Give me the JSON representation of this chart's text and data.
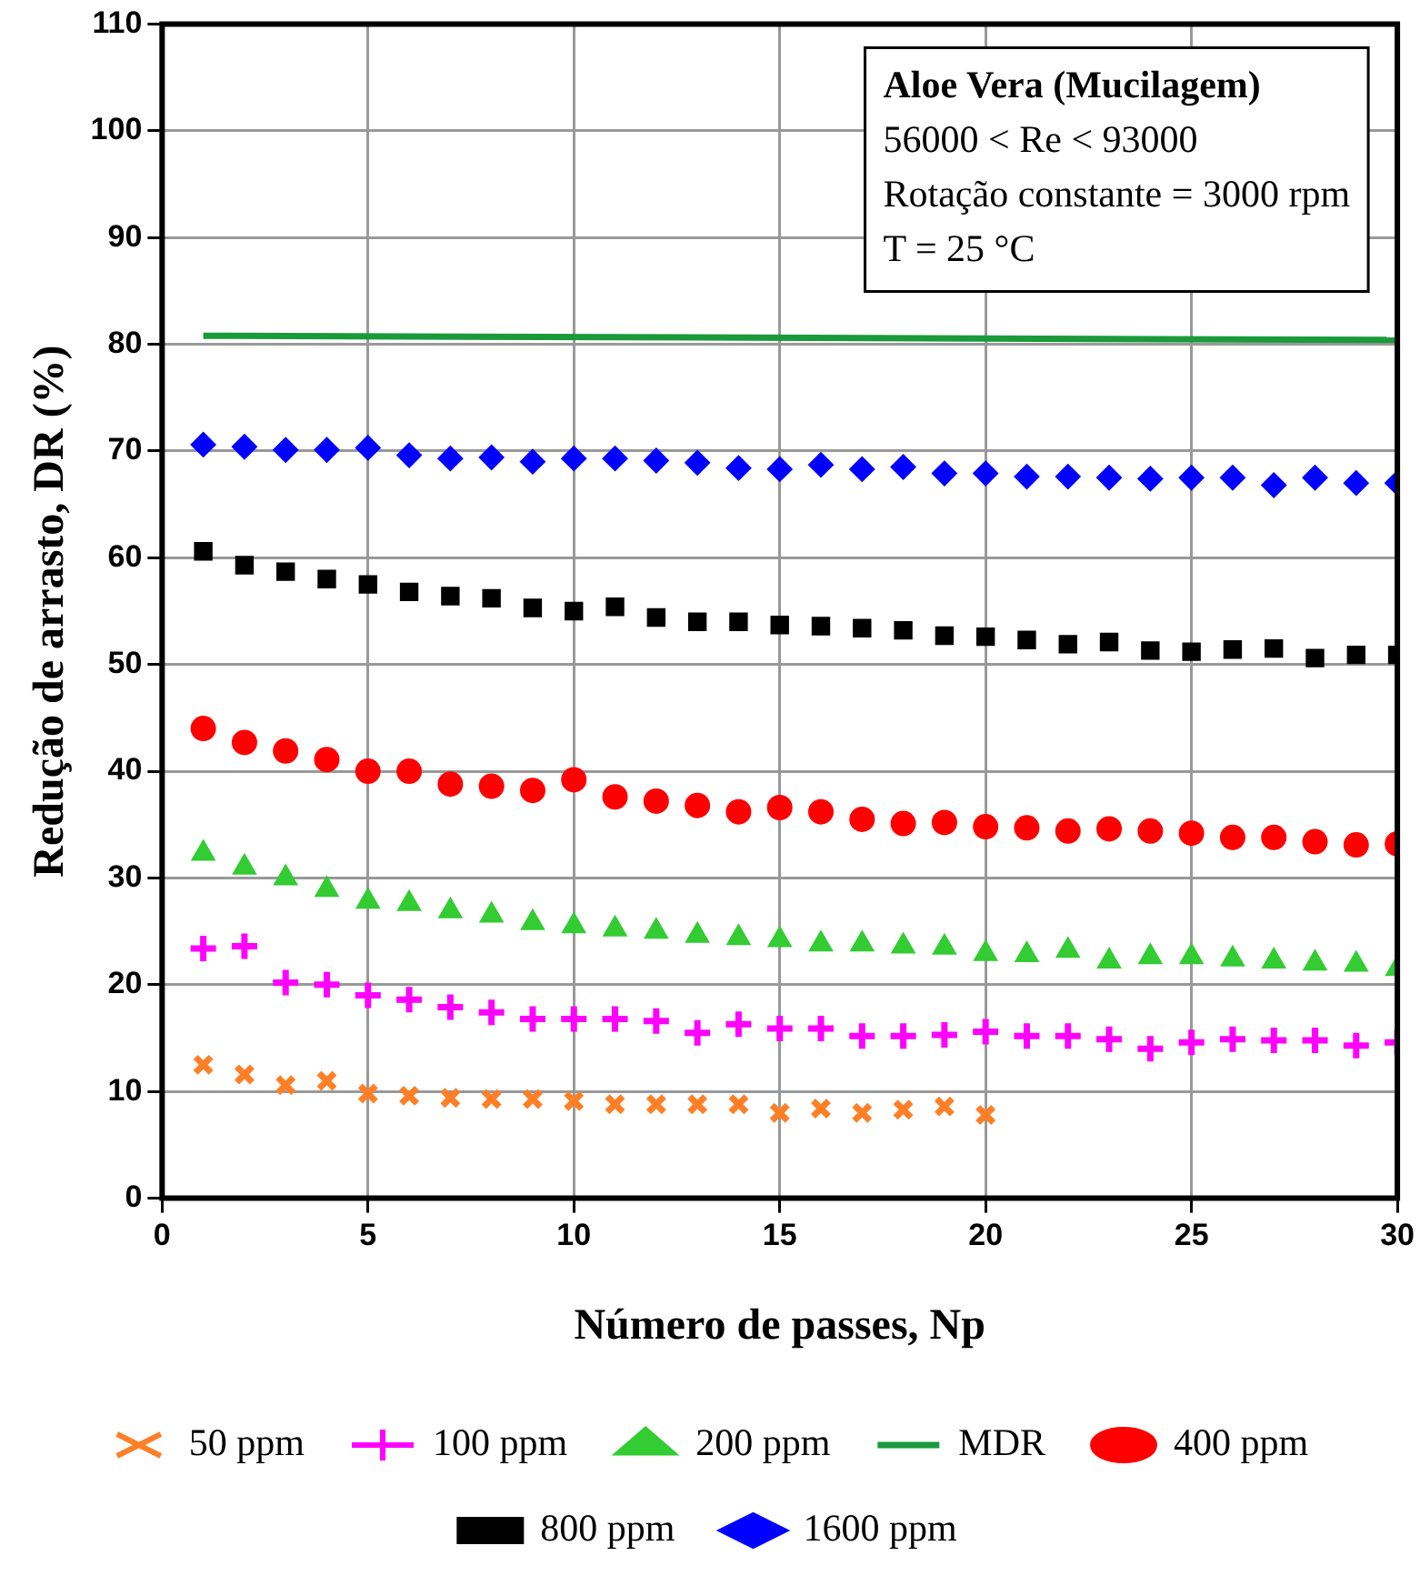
{
  "chart_data": {
    "type": "scatter",
    "xlabel": "Número de passes, Np",
    "ylabel": "Redução de arrasto, DR (%)",
    "xlim": [
      0,
      30
    ],
    "xticks": [
      0,
      5,
      10,
      15,
      20,
      25,
      30
    ],
    "ylim": [
      0,
      110
    ],
    "yticks": [
      0,
      10,
      20,
      30,
      40,
      50,
      60,
      70,
      80,
      90,
      100,
      110
    ],
    "grid": true,
    "legend": "bottom",
    "annotations": [
      "Aloe Vera (Mucilagem)",
      "56000 < Re < 93000",
      "Rotação constante = 3000 rpm",
      "T = 25 °C"
    ],
    "series": [
      {
        "name": "50 ppm",
        "color": "#ff7f27",
        "marker": "cross",
        "x": [
          1,
          2,
          3,
          4,
          5,
          6,
          7,
          8,
          9,
          10,
          11,
          12,
          13,
          14,
          15,
          16,
          17,
          18,
          19,
          20
        ],
        "values": [
          12.5,
          11.6,
          10.6,
          11,
          9.8,
          9.6,
          9.4,
          9.3,
          9.3,
          9.1,
          8.8,
          8.8,
          8.8,
          8.8,
          8,
          8.4,
          8,
          8.3,
          8.6,
          7.8
        ]
      },
      {
        "name": "100 ppm",
        "color": "#ff00ff",
        "marker": "plus",
        "x": [
          1,
          2,
          3,
          4,
          5,
          6,
          7,
          8,
          9,
          10,
          11,
          12,
          13,
          14,
          15,
          16,
          17,
          18,
          19,
          20,
          21,
          22,
          23,
          24,
          25,
          26,
          27,
          28,
          29,
          30
        ],
        "values": [
          23.4,
          23.6,
          20.2,
          20,
          19,
          18.6,
          17.9,
          17.4,
          16.8,
          16.8,
          16.8,
          16.6,
          15.5,
          16.3,
          15.9,
          15.9,
          15.2,
          15.2,
          15.3,
          15.6,
          15.2,
          15.2,
          14.9,
          14,
          14.6,
          14.9,
          14.8,
          14.8,
          14.3,
          14.6
        ]
      },
      {
        "name": "200 ppm",
        "color": "#33cc33",
        "marker": "triangle",
        "x": [
          1,
          2,
          3,
          4,
          5,
          6,
          7,
          8,
          9,
          10,
          11,
          12,
          13,
          14,
          15,
          16,
          17,
          18,
          19,
          20,
          21,
          22,
          23,
          24,
          25,
          26,
          27,
          28,
          29,
          30
        ],
        "values": [
          32.3,
          31,
          30,
          28.9,
          27.8,
          27.6,
          26.9,
          26.5,
          25.8,
          25.5,
          25.2,
          25,
          24.6,
          24.4,
          24.2,
          23.8,
          23.8,
          23.6,
          23.5,
          22.9,
          22.8,
          23.2,
          22.2,
          22.6,
          22.6,
          22.4,
          22.2,
          22,
          21.9,
          21.5
        ]
      },
      {
        "name": "MDR",
        "type": "line",
        "color": "#1a9a3a",
        "marker": "none",
        "x": [
          1,
          30
        ],
        "values": [
          80.8,
          80.4
        ]
      },
      {
        "name": "400 ppm",
        "color": "#ff0000",
        "marker": "circle",
        "x": [
          1,
          2,
          3,
          4,
          5,
          6,
          7,
          8,
          9,
          10,
          11,
          12,
          13,
          14,
          15,
          16,
          17,
          18,
          19,
          20,
          21,
          22,
          23,
          24,
          25,
          26,
          27,
          28,
          29,
          30
        ],
        "values": [
          44,
          42.7,
          41.9,
          41.1,
          40,
          40,
          38.8,
          38.6,
          38.2,
          39.2,
          37.6,
          37.2,
          36.8,
          36.2,
          36.6,
          36.2,
          35.5,
          35.1,
          35.2,
          34.8,
          34.7,
          34.4,
          34.6,
          34.4,
          34.2,
          33.8,
          33.8,
          33.4,
          33.1,
          33.2
        ]
      },
      {
        "name": "800 ppm",
        "color": "#000000",
        "marker": "square",
        "x": [
          1,
          2,
          3,
          4,
          5,
          6,
          7,
          8,
          9,
          10,
          11,
          12,
          13,
          14,
          15,
          16,
          17,
          18,
          19,
          20,
          21,
          22,
          23,
          24,
          25,
          26,
          27,
          28,
          29,
          30
        ],
        "values": [
          60.6,
          59.3,
          58.7,
          58,
          57.5,
          56.8,
          56.4,
          56.2,
          55.3,
          55,
          55.4,
          54.4,
          54,
          54,
          53.7,
          53.6,
          53.4,
          53.2,
          52.7,
          52.6,
          52.3,
          51.9,
          52.1,
          51.3,
          51.2,
          51.4,
          51.5,
          50.6,
          50.9,
          50.9
        ]
      },
      {
        "name": "1600 ppm",
        "color": "#0000ff",
        "marker": "diamond",
        "x": [
          1,
          2,
          3,
          4,
          5,
          6,
          7,
          8,
          9,
          10,
          11,
          12,
          13,
          14,
          15,
          16,
          17,
          18,
          19,
          20,
          21,
          22,
          23,
          24,
          25,
          26,
          27,
          28,
          29,
          30
        ],
        "values": [
          70.6,
          70.4,
          70.1,
          70.1,
          70.3,
          69.6,
          69.3,
          69.4,
          69,
          69.3,
          69.3,
          69.1,
          68.9,
          68.4,
          68.3,
          68.7,
          68.3,
          68.5,
          67.9,
          67.9,
          67.6,
          67.6,
          67.5,
          67.4,
          67.5,
          67.5,
          66.8,
          67.5,
          67,
          67
        ]
      }
    ]
  }
}
